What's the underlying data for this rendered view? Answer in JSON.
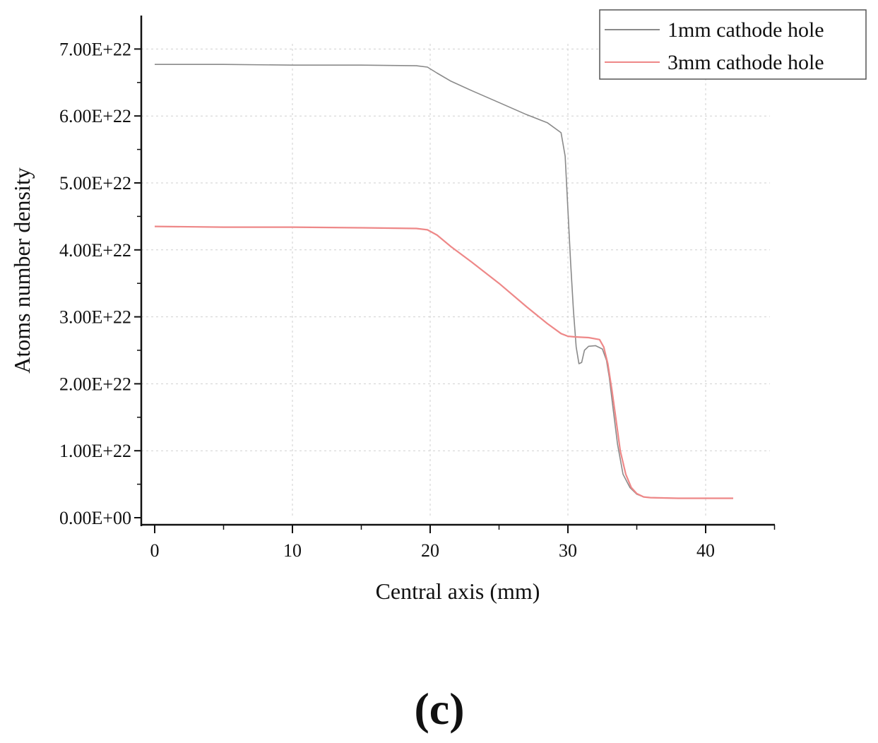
{
  "chart_data": {
    "type": "line",
    "title": "",
    "xlabel": "Central axis (mm)",
    "ylabel": "Atoms number density",
    "xlim": [
      -1,
      45
    ],
    "ylim": [
      0,
      7.5e+22
    ],
    "xticks": [
      0,
      10,
      20,
      30,
      40
    ],
    "xtick_labels": [
      "0",
      "10",
      "20",
      "30",
      "40"
    ],
    "yticks": [
      0,
      1e+22,
      2e+22,
      3e+22,
      4e+22,
      5e+22,
      6e+22,
      7e+22
    ],
    "ytick_labels": [
      "0.00E+00",
      "1.00E+22",
      "2.00E+22",
      "3.00E+22",
      "4.00E+22",
      "5.00E+22",
      "6.00E+22",
      "7.00E+22"
    ],
    "grid": true,
    "legend_position": "top-right",
    "series": [
      {
        "name": "1mm cathode hole",
        "color": "#8a8a8a",
        "x": [
          0,
          5,
          10,
          15,
          19,
          19.8,
          20.5,
          21.5,
          23,
          25,
          27,
          28.5,
          29.5,
          29.8,
          30,
          30.2,
          30.4,
          30.6,
          30.8,
          31.0,
          31.2,
          31.5,
          32.0,
          32.5,
          32.8,
          33.0,
          33.3,
          33.6,
          34.0,
          34.5,
          35.0,
          35.5,
          36,
          38,
          40,
          42
        ],
        "y": [
          6.77e+22,
          6.77e+22,
          6.76e+22,
          6.76e+22,
          6.75e+22,
          6.73e+22,
          6.64e+22,
          6.52e+22,
          6.38e+22,
          6.2e+22,
          6.02e+22,
          5.9e+22,
          5.75e+22,
          5.4e+22,
          4.6e+22,
          3.8e+22,
          3.1e+22,
          2.55e+22,
          2.3e+22,
          2.32e+22,
          2.5e+22,
          2.56e+22,
          2.57e+22,
          2.52e+22,
          2.35e+22,
          2.1e+22,
          1.6e+22,
          1.1e+22,
          6.5e+21,
          4.5e+21,
          3.5e+21,
          3.1e+21,
          3e+21,
          2.9e+21,
          2.9e+21,
          2.9e+21
        ]
      },
      {
        "name": "3mm cathode hole",
        "color": "#ee8888",
        "x": [
          0,
          5,
          10,
          15,
          19,
          19.8,
          20.5,
          21.5,
          23,
          25,
          27,
          28.5,
          29.5,
          30.0,
          30.5,
          31.5,
          32.3,
          32.6,
          32.9,
          33.2,
          33.5,
          33.8,
          34.2,
          34.6,
          35.0,
          35.5,
          36,
          38,
          40,
          42
        ],
        "y": [
          4.35e+22,
          4.34e+22,
          4.34e+22,
          4.33e+22,
          4.32e+22,
          4.3e+22,
          4.22e+22,
          4.05e+22,
          3.82e+22,
          3.5e+22,
          3.15e+22,
          2.9e+22,
          2.75e+22,
          2.71e+22,
          2.7e+22,
          2.69e+22,
          2.66e+22,
          2.55e+22,
          2.3e+22,
          1.9e+22,
          1.45e+22,
          1e+22,
          6.5e+21,
          4.5e+21,
          3.6e+21,
          3.1e+21,
          3e+21,
          2.9e+21,
          2.9e+21,
          2.9e+21
        ]
      }
    ]
  },
  "panel_label": "(c)"
}
